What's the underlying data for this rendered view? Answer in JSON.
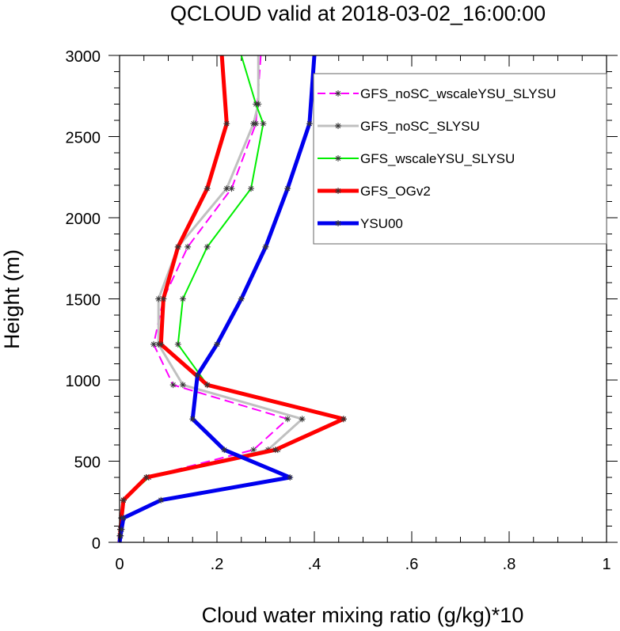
{
  "chart_data": {
    "type": "line",
    "title": "QCLOUD valid at 2018-03-02_16:00:00",
    "xlabel": "Cloud water mixing ratio (g/kg)*10",
    "ylabel": "Height (m)",
    "xlim": [
      0,
      1
    ],
    "ylim": [
      0,
      3000
    ],
    "xticks": [
      0,
      0.2,
      0.4,
      0.6,
      0.8,
      1
    ],
    "xtick_labels": [
      "0",
      ".2",
      ".4",
      ".6",
      ".8",
      "1"
    ],
    "yticks": [
      0,
      500,
      1000,
      1500,
      2000,
      2500,
      3000
    ],
    "ytick_labels": [
      "0",
      "500",
      "1000",
      "1500",
      "2000",
      "2500",
      "3000"
    ],
    "grid": false,
    "legend_position": "top-right",
    "series": [
      {
        "name": "GFS_noSC_wscaleYSU_SLYSU",
        "color": "#ff00ff",
        "dash": true,
        "stroke_width": 2,
        "marker": "asterisk",
        "points": [
          [
            0.29,
            3000
          ],
          [
            0.28,
            2580
          ],
          [
            0.23,
            2180
          ],
          [
            0.14,
            1820
          ],
          [
            0.09,
            1500
          ],
          [
            0.07,
            1220
          ],
          [
            0.11,
            970
          ],
          [
            0.345,
            760
          ],
          [
            0.275,
            570
          ],
          [
            0.055,
            400
          ],
          [
            0.008,
            260
          ],
          [
            0.004,
            150
          ],
          [
            0.002,
            80
          ],
          [
            0.001,
            40
          ],
          [
            0,
            0
          ]
        ]
      },
      {
        "name": "GFS_noSC_SLYSU",
        "color": "#c0c0c0",
        "dash": false,
        "stroke_width": 3,
        "marker": "asterisk",
        "points": [
          [
            0.285,
            3000
          ],
          [
            0.285,
            2700
          ],
          [
            0.275,
            2580
          ],
          [
            0.22,
            2180
          ],
          [
            0.12,
            1820
          ],
          [
            0.08,
            1500
          ],
          [
            0.08,
            1220
          ],
          [
            0.13,
            970
          ],
          [
            0.375,
            760
          ],
          [
            0.305,
            570
          ],
          [
            0.055,
            400
          ],
          [
            0.008,
            260
          ],
          [
            0.004,
            150
          ],
          [
            0.002,
            80
          ],
          [
            0.001,
            40
          ],
          [
            0,
            0
          ]
        ]
      },
      {
        "name": "GFS_wscaleYSU_SLYSU",
        "color": "#00ee00",
        "dash": false,
        "stroke_width": 2,
        "marker": "asterisk",
        "points": [
          [
            0.25,
            3000
          ],
          [
            0.28,
            2700
          ],
          [
            0.295,
            2580
          ],
          [
            0.27,
            2180
          ],
          [
            0.18,
            1820
          ],
          [
            0.13,
            1500
          ],
          [
            0.12,
            1220
          ],
          [
            0.18,
            970
          ],
          [
            0.46,
            760
          ],
          [
            0.325,
            570
          ],
          [
            0.06,
            400
          ],
          [
            0.008,
            260
          ],
          [
            0.004,
            150
          ],
          [
            0.002,
            80
          ],
          [
            0.001,
            40
          ],
          [
            0,
            0
          ]
        ]
      },
      {
        "name": "GFS_OGv2",
        "color": "#ff0000",
        "dash": false,
        "stroke_width": 5,
        "marker": "asterisk",
        "points": [
          [
            0.21,
            3000
          ],
          [
            0.22,
            2580
          ],
          [
            0.18,
            2180
          ],
          [
            0.12,
            1820
          ],
          [
            0.09,
            1500
          ],
          [
            0.085,
            1220
          ],
          [
            0.18,
            970
          ],
          [
            0.46,
            760
          ],
          [
            0.32,
            570
          ],
          [
            0.055,
            400
          ],
          [
            0.008,
            260
          ],
          [
            0.004,
            150
          ],
          [
            0.002,
            80
          ],
          [
            0.001,
            40
          ],
          [
            0,
            0
          ]
        ]
      },
      {
        "name": "YSU00",
        "color": "#0000ee",
        "dash": false,
        "stroke_width": 5,
        "marker": "asterisk",
        "points": [
          [
            0.4,
            3000
          ],
          [
            0.39,
            2580
          ],
          [
            0.345,
            2180
          ],
          [
            0.3,
            1820
          ],
          [
            0.25,
            1500
          ],
          [
            0.2,
            1220
          ],
          [
            0.16,
            1030
          ],
          [
            0.15,
            760
          ],
          [
            0.215,
            570
          ],
          [
            0.35,
            400
          ],
          [
            0.085,
            260
          ],
          [
            0.008,
            150
          ],
          [
            0.004,
            80
          ],
          [
            0.002,
            40
          ],
          [
            0,
            0
          ]
        ]
      }
    ]
  }
}
